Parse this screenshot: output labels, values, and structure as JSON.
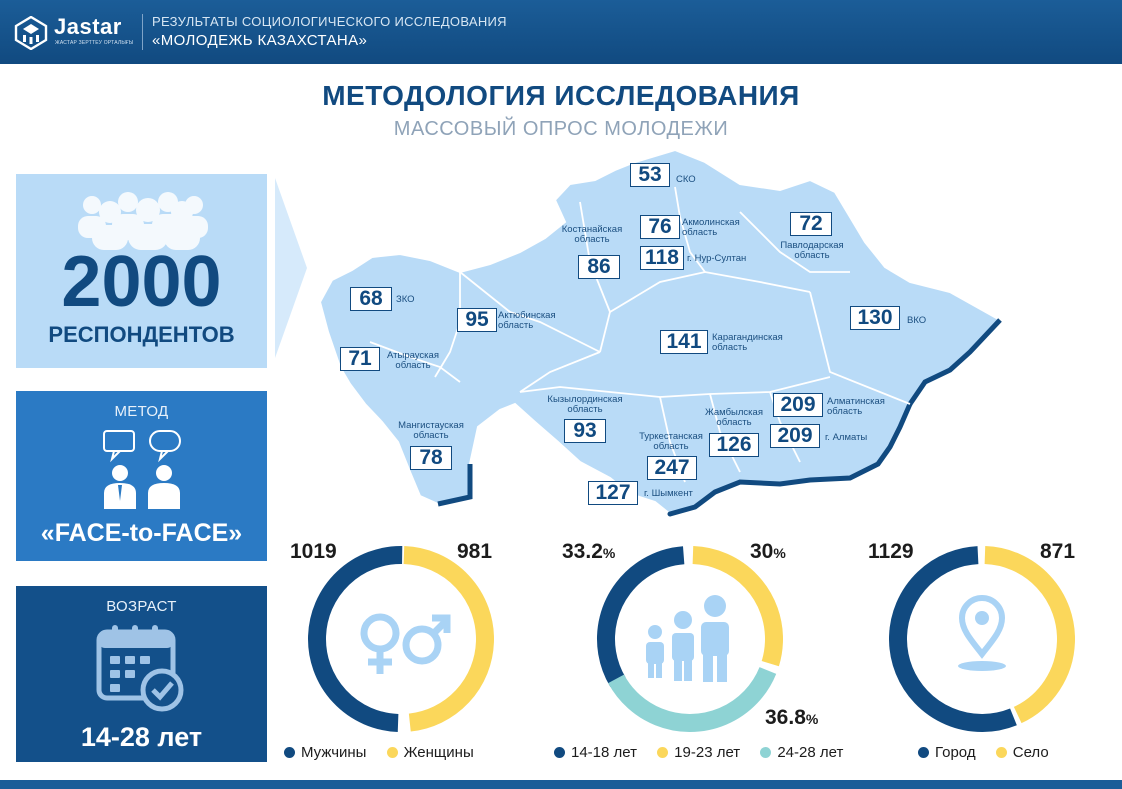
{
  "header": {
    "logo_text": "Jastar",
    "logo_sub": "ЖАСТАР ЗЕРТТЕУ ОРТАЛЫҒЫ",
    "line1": "РЕЗУЛЬТАТЫ СОЦИОЛОГИЧЕСКОГО ИССЛЕДОВАНИЯ",
    "line2": "«МОЛОДЕЖЬ КАЗАХСТАНА»"
  },
  "title": "МЕТОДОЛОГИЯ ИССЛЕДОВАНИЯ",
  "subtitle": "МАССОВЫЙ ОПРОС МОЛОДЕЖИ",
  "respondents": {
    "number": "2000",
    "label": "РЕСПОНДЕНТОВ"
  },
  "method": {
    "title": "МЕТОД",
    "value": "«FACE-to-FACE»"
  },
  "age": {
    "title": "ВОЗРАСТ",
    "value": "14-28 лет"
  },
  "regions": [
    {
      "value": "53",
      "name": "СКО"
    },
    {
      "value": "76",
      "name": "Акмолинская область"
    },
    {
      "value": "72",
      "name": "Павлодарская область"
    },
    {
      "value": "86",
      "name": "Костанайская область"
    },
    {
      "value": "118",
      "name": "г. Нур-Султан"
    },
    {
      "value": "68",
      "name": "ЗКО"
    },
    {
      "value": "95",
      "name": "Актюбинская область"
    },
    {
      "value": "130",
      "name": "ВКО"
    },
    {
      "value": "71",
      "name": "Атырауская область"
    },
    {
      "value": "141",
      "name": "Карагандинская область"
    },
    {
      "value": "93",
      "name": "Кызылординская область"
    },
    {
      "value": "209",
      "name": "Алматинская область"
    },
    {
      "value": "78",
      "name": "Мангистауская область"
    },
    {
      "value": "126",
      "name": "Жамбылская область"
    },
    {
      "value": "209",
      "name": "г. Алматы"
    },
    {
      "value": "247",
      "name": "Туркестанская область"
    },
    {
      "value": "127",
      "name": "г. Шымкент"
    }
  ],
  "colors": {
    "navy": "#114a80",
    "yellow": "#fbd75b",
    "teal": "#8ed3d4",
    "light_blue": "#b9dbf7",
    "mid_blue": "#2b7ac4",
    "map_fill": "#b9dbf7"
  },
  "charts": {
    "gender": {
      "left_value": "1019",
      "right_value": "981",
      "legend": [
        "Мужчины",
        "Женщины"
      ],
      "icon": "gender-symbols-icon"
    },
    "ages": {
      "left_value": "33.2",
      "right_value": "30",
      "bottom_value": "36.8",
      "pct_sign": "%",
      "legend": [
        "14-18 лет",
        "19-23 лет",
        "24-28 лет"
      ],
      "icon": "family-icon"
    },
    "settlement": {
      "left_value": "1129",
      "right_value": "871",
      "legend": [
        "Город",
        "Село"
      ],
      "icon": "location-pin-icon"
    }
  },
  "chart_data": [
    {
      "type": "pie",
      "categories": [
        "Мужчины",
        "Женщины"
      ],
      "values": [
        1019,
        981
      ]
    },
    {
      "type": "pie",
      "categories": [
        "14-18 лет",
        "19-23 лет",
        "24-28 лет"
      ],
      "values": [
        33.2,
        30,
        36.8
      ]
    },
    {
      "type": "pie",
      "categories": [
        "Город",
        "Село"
      ],
      "values": [
        1129,
        871
      ]
    }
  ]
}
